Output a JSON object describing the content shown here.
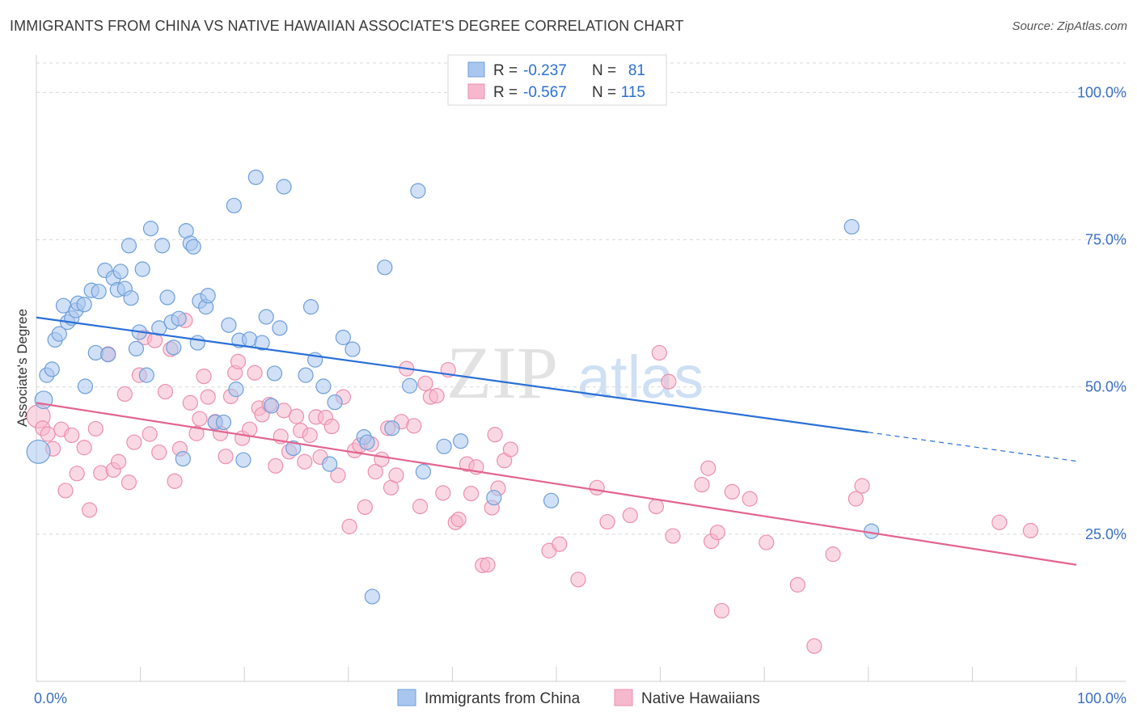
{
  "title": "IMMIGRANTS FROM CHINA VS NATIVE HAWAIIAN ASSOCIATE'S DEGREE CORRELATION CHART",
  "source": "Source: ZipAtlas.com",
  "watermark": {
    "zip": "ZIP",
    "atlas": "atlas"
  },
  "legend_top": [
    {
      "r_label": "R =",
      "r_value": "-0.237",
      "n_label": "N =",
      "n_value": "81"
    },
    {
      "r_label": "R =",
      "r_value": "-0.567",
      "n_label": "N =",
      "n_value": "115"
    }
  ],
  "colors": {
    "blue_fill": "#a9c7ee",
    "blue_stroke": "#6e9fd9",
    "blue_line": "#2a6fd6",
    "pink_fill": "#f6b8cc",
    "pink_stroke": "#ec8fae",
    "pink_line": "#e2648f",
    "grid": "#d9d9d9",
    "tick_text": "#3a6fc4"
  },
  "chart_data": {
    "type": "scatter",
    "title": "IMMIGRANTS FROM CHINA VS NATIVE HAWAIIAN ASSOCIATE'S DEGREE CORRELATION CHART",
    "xlabel": "",
    "ylabel": "Associate's Degree",
    "xlim": [
      0,
      100
    ],
    "ylim": [
      0,
      105
    ],
    "x_tick_labels": [
      "0.0%",
      "100.0%"
    ],
    "y_ticks": [
      25,
      50,
      75,
      100
    ],
    "y_tick_labels": [
      "25.0%",
      "50.0%",
      "75.0%",
      "100.0%"
    ],
    "grid": true,
    "legend_position": "top-center and bottom",
    "series": [
      {
        "name": "Immigrants from China",
        "color": "#a9c7ee",
        "trend": {
          "x0": 0,
          "y0": 61.8,
          "x1": 80,
          "y1": 42.3,
          "dash_to_x": 100,
          "dash_to_y": 37.4
        },
        "points": [
          [
            0.2,
            39,
            1.6
          ],
          [
            0.7,
            47.8,
            1.2
          ],
          [
            1.0,
            52.0,
            1
          ],
          [
            1.5,
            53.0,
            1
          ],
          [
            1.8,
            58.0,
            1
          ],
          [
            2.2,
            59.0,
            1
          ],
          [
            2.6,
            63.8,
            1
          ],
          [
            3.0,
            61.0,
            1
          ],
          [
            3.4,
            61.7,
            1
          ],
          [
            3.8,
            63.0,
            1
          ],
          [
            4.0,
            64.2,
            1
          ],
          [
            4.6,
            64.0,
            1
          ],
          [
            4.7,
            50.1,
            1
          ],
          [
            5.3,
            66.4,
            1
          ],
          [
            5.7,
            55.8,
            1
          ],
          [
            6.0,
            66.2,
            1
          ],
          [
            6.6,
            69.8,
            1
          ],
          [
            6.9,
            55.5,
            1
          ],
          [
            7.4,
            68.5,
            1
          ],
          [
            7.8,
            66.5,
            1
          ],
          [
            8.1,
            69.6,
            1
          ],
          [
            8.5,
            66.7,
            1
          ],
          [
            8.9,
            74.0,
            1
          ],
          [
            9.1,
            65.1,
            1
          ],
          [
            9.6,
            56.5,
            1
          ],
          [
            9.9,
            59.3,
            1
          ],
          [
            10.2,
            70.0,
            1
          ],
          [
            10.6,
            52.0,
            1
          ],
          [
            11.0,
            76.9,
            1
          ],
          [
            11.8,
            60.0,
            1
          ],
          [
            12.1,
            74.0,
            1
          ],
          [
            12.6,
            65.2,
            1
          ],
          [
            13.0,
            61.0,
            1
          ],
          [
            13.2,
            56.7,
            1
          ],
          [
            13.7,
            61.6,
            1
          ],
          [
            14.1,
            37.8,
            1
          ],
          [
            14.4,
            76.5,
            1
          ],
          [
            14.8,
            74.4,
            1
          ],
          [
            15.1,
            73.8,
            1
          ],
          [
            15.5,
            57.5,
            1
          ],
          [
            15.7,
            64.6,
            1
          ],
          [
            16.3,
            63.6,
            1
          ],
          [
            16.5,
            65.5,
            1
          ],
          [
            17.2,
            44.0,
            1
          ],
          [
            18.0,
            44.0,
            1
          ],
          [
            18.5,
            60.5,
            1
          ],
          [
            19.0,
            80.8,
            1
          ],
          [
            19.2,
            49.6,
            1
          ],
          [
            19.5,
            57.9,
            1
          ],
          [
            19.9,
            37.6,
            1
          ],
          [
            20.5,
            58.1,
            1
          ],
          [
            21.1,
            85.6,
            1
          ],
          [
            21.7,
            57.5,
            1
          ],
          [
            22.1,
            61.9,
            1
          ],
          [
            22.6,
            46.8,
            1
          ],
          [
            22.9,
            52.3,
            1
          ],
          [
            23.4,
            60.0,
            1
          ],
          [
            23.8,
            84.0,
            1
          ],
          [
            24.7,
            39.6,
            1
          ],
          [
            25.9,
            52.0,
            1
          ],
          [
            26.4,
            63.6,
            1
          ],
          [
            26.8,
            54.6,
            1
          ],
          [
            27.6,
            50.1,
            1
          ],
          [
            28.2,
            36.9,
            1
          ],
          [
            28.7,
            47.4,
            1
          ],
          [
            29.5,
            58.4,
            1
          ],
          [
            30.4,
            56.4,
            1
          ],
          [
            31.5,
            41.5,
            1
          ],
          [
            31.8,
            40.6,
            1
          ],
          [
            32.3,
            14.4,
            1
          ],
          [
            33.5,
            70.3,
            1
          ],
          [
            34.2,
            43.0,
            1
          ],
          [
            35.9,
            50.2,
            1
          ],
          [
            36.7,
            83.3,
            1
          ],
          [
            37.2,
            35.6,
            1
          ],
          [
            39.2,
            39.9,
            1
          ],
          [
            40.8,
            40.8,
            1
          ],
          [
            44.0,
            31.2,
            1
          ],
          [
            49.5,
            30.7,
            1
          ],
          [
            78.4,
            77.2,
            1
          ],
          [
            80.3,
            25.5,
            1
          ]
        ]
      },
      {
        "name": "Native Hawaiians",
        "color": "#f6b8cc",
        "trend": {
          "x0": 0,
          "y0": 47.3,
          "x1": 100,
          "y1": 19.8
        },
        "points": [
          [
            0.2,
            45,
            1.6
          ],
          [
            0.6,
            43,
            1
          ],
          [
            1.1,
            42,
            1
          ],
          [
            1.6,
            39.5,
            1
          ],
          [
            2.4,
            42.8,
            1
          ],
          [
            2.8,
            32.4,
            1
          ],
          [
            3.4,
            41.8,
            1
          ],
          [
            3.9,
            35.3,
            1
          ],
          [
            4.6,
            39.7,
            1
          ],
          [
            5.1,
            29.1,
            1
          ],
          [
            5.7,
            42.9,
            1
          ],
          [
            6.2,
            35.4,
            1
          ],
          [
            6.9,
            55.6,
            1
          ],
          [
            7.4,
            35.9,
            1
          ],
          [
            7.9,
            37.3,
            1
          ],
          [
            8.5,
            48.8,
            1
          ],
          [
            8.9,
            33.8,
            1
          ],
          [
            9.4,
            40.6,
            1
          ],
          [
            9.9,
            52.0,
            1
          ],
          [
            10.4,
            58.4,
            1
          ],
          [
            10.9,
            42.0,
            1
          ],
          [
            11.4,
            57.9,
            1
          ],
          [
            11.8,
            38.9,
            1
          ],
          [
            12.4,
            49.2,
            1
          ],
          [
            12.9,
            56.4,
            1
          ],
          [
            13.3,
            34.0,
            1
          ],
          [
            13.8,
            39.5,
            1
          ],
          [
            14.3,
            61.3,
            1
          ],
          [
            14.8,
            47.3,
            1
          ],
          [
            15.4,
            42.1,
            1
          ],
          [
            15.7,
            44.6,
            1
          ],
          [
            16.1,
            51.8,
            1
          ],
          [
            16.5,
            48.3,
            1
          ],
          [
            17.2,
            44.1,
            1
          ],
          [
            17.7,
            42.1,
            1
          ],
          [
            18.2,
            38.2,
            1
          ],
          [
            18.7,
            48.4,
            1
          ],
          [
            19.1,
            52.4,
            1
          ],
          [
            19.4,
            54.3,
            1
          ],
          [
            19.8,
            41.3,
            1
          ],
          [
            20.5,
            42.8,
            1
          ],
          [
            21.0,
            52.4,
            1
          ],
          [
            21.4,
            46.4,
            1
          ],
          [
            21.7,
            45.3,
            1
          ],
          [
            22.4,
            47.0,
            1
          ],
          [
            23.0,
            36.6,
            1
          ],
          [
            23.5,
            41.6,
            1
          ],
          [
            23.8,
            46.0,
            1
          ],
          [
            24.3,
            39.0,
            1
          ],
          [
            25.0,
            45.0,
            1
          ],
          [
            25.4,
            42.6,
            1
          ],
          [
            25.8,
            37.3,
            1
          ],
          [
            26.3,
            41.8,
            1
          ],
          [
            26.9,
            44.9,
            1
          ],
          [
            27.3,
            38.1,
            1
          ],
          [
            27.8,
            44.8,
            1
          ],
          [
            28.4,
            43.3,
            1
          ],
          [
            29.0,
            35.0,
            1
          ],
          [
            29.5,
            48.3,
            1
          ],
          [
            30.1,
            26.3,
            1
          ],
          [
            30.6,
            39.2,
            1
          ],
          [
            31.1,
            40.1,
            1
          ],
          [
            31.6,
            29.6,
            1
          ],
          [
            32.2,
            40.3,
            1
          ],
          [
            32.6,
            35.6,
            1
          ],
          [
            33.2,
            37.7,
            1
          ],
          [
            33.8,
            43.0,
            1
          ],
          [
            34.1,
            32.9,
            1
          ],
          [
            34.6,
            35.0,
            1
          ],
          [
            35.1,
            44.1,
            1
          ],
          [
            35.6,
            53.1,
            1
          ],
          [
            36.3,
            43.4,
            1
          ],
          [
            36.9,
            29.7,
            1
          ],
          [
            37.4,
            50.6,
            1
          ],
          [
            37.9,
            48.3,
            1
          ],
          [
            38.5,
            48.5,
            1
          ],
          [
            39.1,
            32.0,
            1
          ],
          [
            39.6,
            52.9,
            1
          ],
          [
            40.3,
            27.0,
            1
          ],
          [
            40.6,
            27.5,
            1
          ],
          [
            41.4,
            36.9,
            1
          ],
          [
            41.8,
            31.9,
            1
          ],
          [
            42.3,
            36.4,
            1
          ],
          [
            42.9,
            19.7,
            1
          ],
          [
            43.4,
            19.8,
            1
          ],
          [
            43.8,
            29.5,
            1
          ],
          [
            44.1,
            41.9,
            1
          ],
          [
            44.4,
            32.8,
            1
          ],
          [
            45.0,
            37.5,
            1
          ],
          [
            45.6,
            39.4,
            1
          ],
          [
            49.3,
            22.2,
            1
          ],
          [
            50.3,
            23.3,
            1
          ],
          [
            52.1,
            17.3,
            1
          ],
          [
            53.9,
            32.9,
            1
          ],
          [
            54.9,
            27.1,
            1
          ],
          [
            57.1,
            28.2,
            1
          ],
          [
            59.6,
            29.7,
            1
          ],
          [
            59.9,
            55.8,
            1
          ],
          [
            60.8,
            50.9,
            1
          ],
          [
            61.2,
            24.7,
            1
          ],
          [
            64.0,
            33.4,
            1
          ],
          [
            64.6,
            36.2,
            1
          ],
          [
            64.9,
            23.8,
            1
          ],
          [
            65.5,
            25.3,
            1
          ],
          [
            65.9,
            12.0,
            1
          ],
          [
            66.9,
            32.2,
            1
          ],
          [
            68.6,
            31.0,
            1
          ],
          [
            70.2,
            23.6,
            1
          ],
          [
            73.2,
            16.4,
            1
          ],
          [
            74.8,
            6.0,
            1
          ],
          [
            76.6,
            21.6,
            1
          ],
          [
            78.8,
            31.0,
            1
          ],
          [
            79.4,
            33.2,
            1
          ],
          [
            92.6,
            27.0,
            1
          ],
          [
            95.6,
            25.6,
            1
          ]
        ]
      }
    ]
  },
  "legend_bottom": [
    {
      "label": "Immigrants from China"
    },
    {
      "label": "Native Hawaiians"
    }
  ]
}
